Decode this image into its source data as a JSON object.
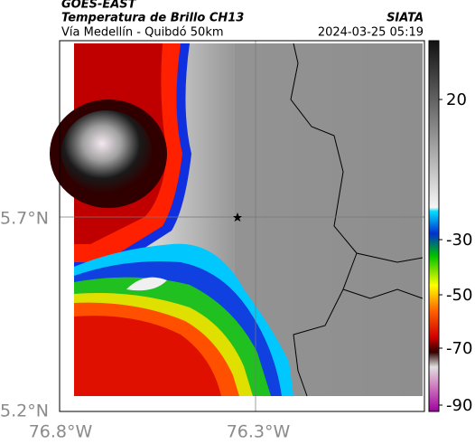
{
  "header": {
    "source": "GOES-EAST",
    "title": "Temperatura de Brillo CH13",
    "subtitle": "Vía Medellín - Quibdó 50km",
    "brand": "SIATA",
    "timestamp": "2024-03-25 05:19"
  },
  "map": {
    "lat_labels": [
      "5.7°N",
      "5.2°N"
    ],
    "lon_labels": [
      "76.8°W",
      "76.3°W"
    ]
  },
  "colorbar": {
    "ticks": [
      "20",
      "-30",
      "-50",
      "-70",
      "-90"
    ]
  }
}
